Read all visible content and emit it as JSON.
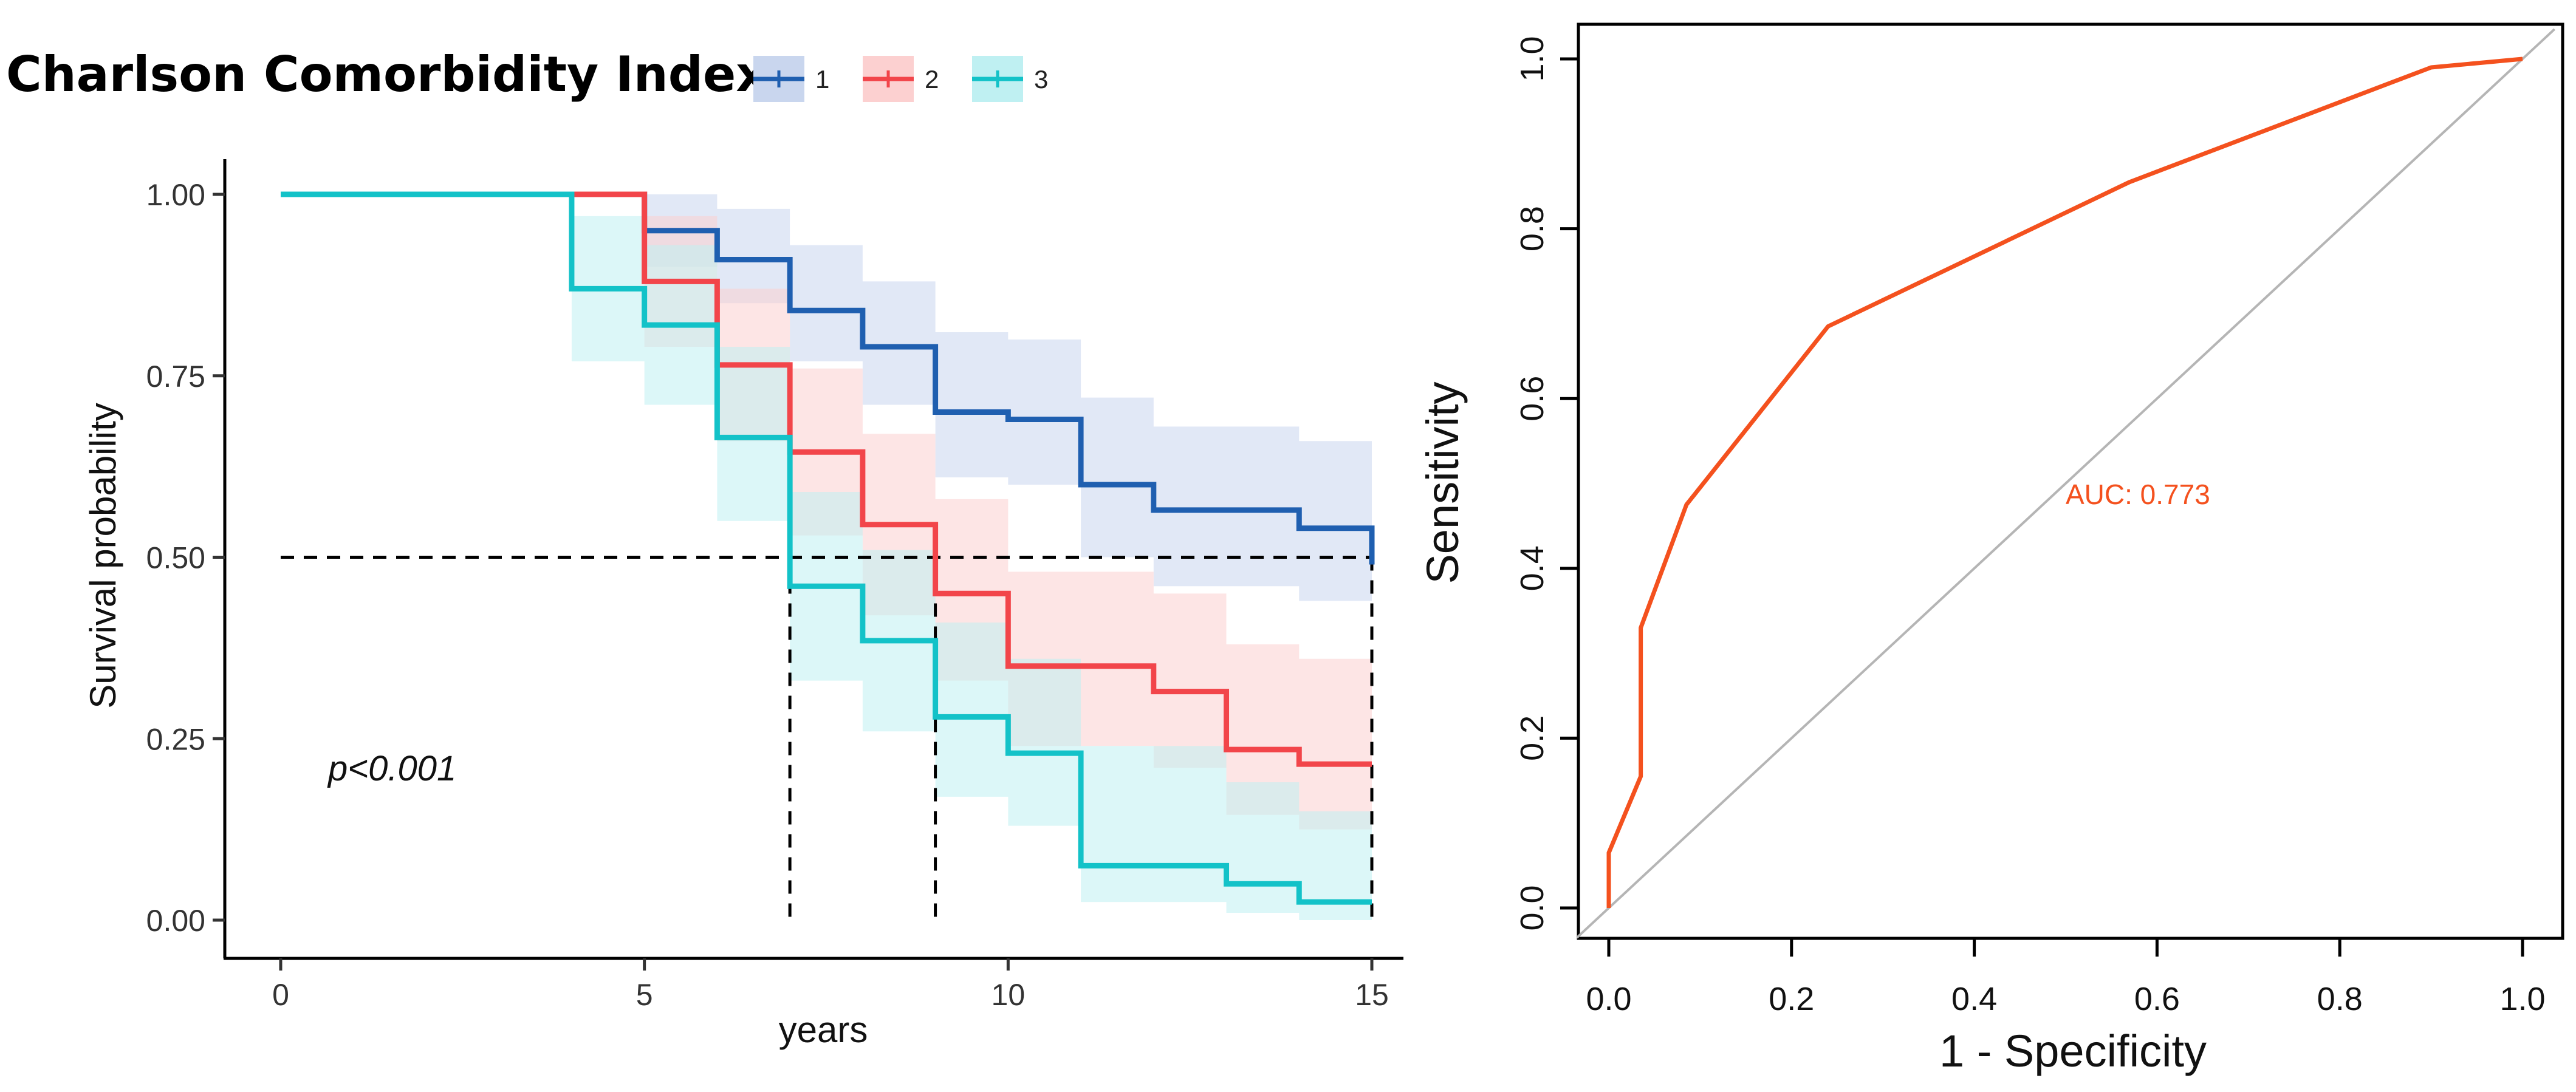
{
  "chart_data": [
    {
      "type": "line",
      "subtype": "kaplan-meier",
      "legend": {
        "title": "Charlson  Comorbidity  Index",
        "placement": "top",
        "entries": [
          {
            "label": "1",
            "color": "#1f5fb0"
          },
          {
            "label": "2",
            "color": "#f2454a"
          },
          {
            "label": "3",
            "color": "#13c2c8"
          }
        ]
      },
      "xlabel": "years",
      "ylabel": "Survival probability",
      "xlim": [
        0,
        15
      ],
      "ylim": [
        0,
        1
      ],
      "xticks": [
        "0",
        "5",
        "10",
        "15"
      ],
      "yticks": [
        "0.00",
        "0.25",
        "0.50",
        "0.75",
        "1.00"
      ],
      "xtick_values": [
        0,
        5,
        10,
        15
      ],
      "ytick_values": [
        0,
        0.25,
        0.5,
        0.75,
        1
      ],
      "annotation": "p<0.001",
      "median_line": {
        "y": 0.5,
        "x_marks": [
          7,
          9,
          15
        ]
      },
      "series": [
        {
          "name": "1",
          "color": "#1f5fb0",
          "fill": "#c9d6ee",
          "x": [
            0,
            5,
            5.5,
            6,
            7,
            8,
            9,
            10,
            11,
            12,
            13,
            14,
            15,
            15
          ],
          "y": [
            1.0,
            0.95,
            0.95,
            0.91,
            0.84,
            0.79,
            0.7,
            0.69,
            0.6,
            0.565,
            0.565,
            0.54,
            0.53,
            0.49
          ],
          "lower": [
            1.0,
            0.9,
            0.9,
            0.85,
            0.77,
            0.71,
            0.61,
            0.6,
            0.5,
            0.46,
            0.46,
            0.44,
            0.43,
            0.43
          ],
          "upper": [
            1.0,
            1.0,
            1.0,
            0.98,
            0.93,
            0.88,
            0.81,
            0.8,
            0.72,
            0.68,
            0.68,
            0.66,
            0.66,
            0.66
          ]
        },
        {
          "name": "2",
          "color": "#f2454a",
          "fill": "#fcd0d0",
          "x": [
            0,
            5,
            6,
            7,
            8,
            9,
            10,
            11,
            12,
            13,
            14,
            15
          ],
          "y": [
            1.0,
            0.88,
            0.765,
            0.645,
            0.545,
            0.45,
            0.35,
            0.35,
            0.315,
            0.235,
            0.215,
            0.215
          ],
          "lower": [
            1.0,
            0.79,
            0.66,
            0.53,
            0.42,
            0.33,
            0.24,
            0.24,
            0.21,
            0.145,
            0.125,
            0.125
          ],
          "upper": [
            1.0,
            0.97,
            0.87,
            0.76,
            0.67,
            0.58,
            0.48,
            0.48,
            0.45,
            0.38,
            0.36,
            0.36
          ]
        },
        {
          "name": "3",
          "color": "#13c2c8",
          "fill": "#bff0f2",
          "x": [
            0,
            4,
            5,
            6,
            7,
            8,
            9,
            10,
            11,
            12,
            13,
            14,
            15
          ],
          "y": [
            1.0,
            0.87,
            0.82,
            0.665,
            0.46,
            0.385,
            0.28,
            0.23,
            0.075,
            0.075,
            0.05,
            0.025,
            0.025
          ],
          "lower": [
            1.0,
            0.77,
            0.71,
            0.55,
            0.33,
            0.26,
            0.17,
            0.13,
            0.025,
            0.025,
            0.01,
            0.0,
            0.0
          ],
          "upper": [
            1.0,
            0.97,
            0.93,
            0.79,
            0.59,
            0.51,
            0.41,
            0.36,
            0.24,
            0.24,
            0.19,
            0.15,
            0.15
          ]
        }
      ]
    },
    {
      "type": "line",
      "subtype": "roc",
      "xlabel": "1 -  Specificity",
      "ylabel": "Sensitivity",
      "xlim": [
        0,
        1
      ],
      "ylim": [
        0,
        1
      ],
      "xticks": [
        "0.0",
        "0.2",
        "0.4",
        "0.6",
        "0.8",
        "1.0"
      ],
      "yticks": [
        "0.0",
        "0.2",
        "0.4",
        "0.6",
        "0.8",
        "1.0"
      ],
      "tick_values": [
        0,
        0.2,
        0.4,
        0.6,
        0.8,
        1.0
      ],
      "annotation": "AUC: 0.773",
      "series": [
        {
          "name": "ROC",
          "color": "#f4511e",
          "x": [
            0.0,
            0.0,
            0.035,
            0.035,
            0.085,
            0.24,
            0.57,
            0.9,
            1.0
          ],
          "y": [
            0.0,
            0.065,
            0.155,
            0.33,
            0.475,
            0.685,
            0.855,
            0.99,
            1.0
          ]
        },
        {
          "name": "reference",
          "color": "#b5b5b5",
          "x": [
            -0.035,
            1.035
          ],
          "y": [
            -0.035,
            1.035
          ]
        }
      ]
    }
  ]
}
